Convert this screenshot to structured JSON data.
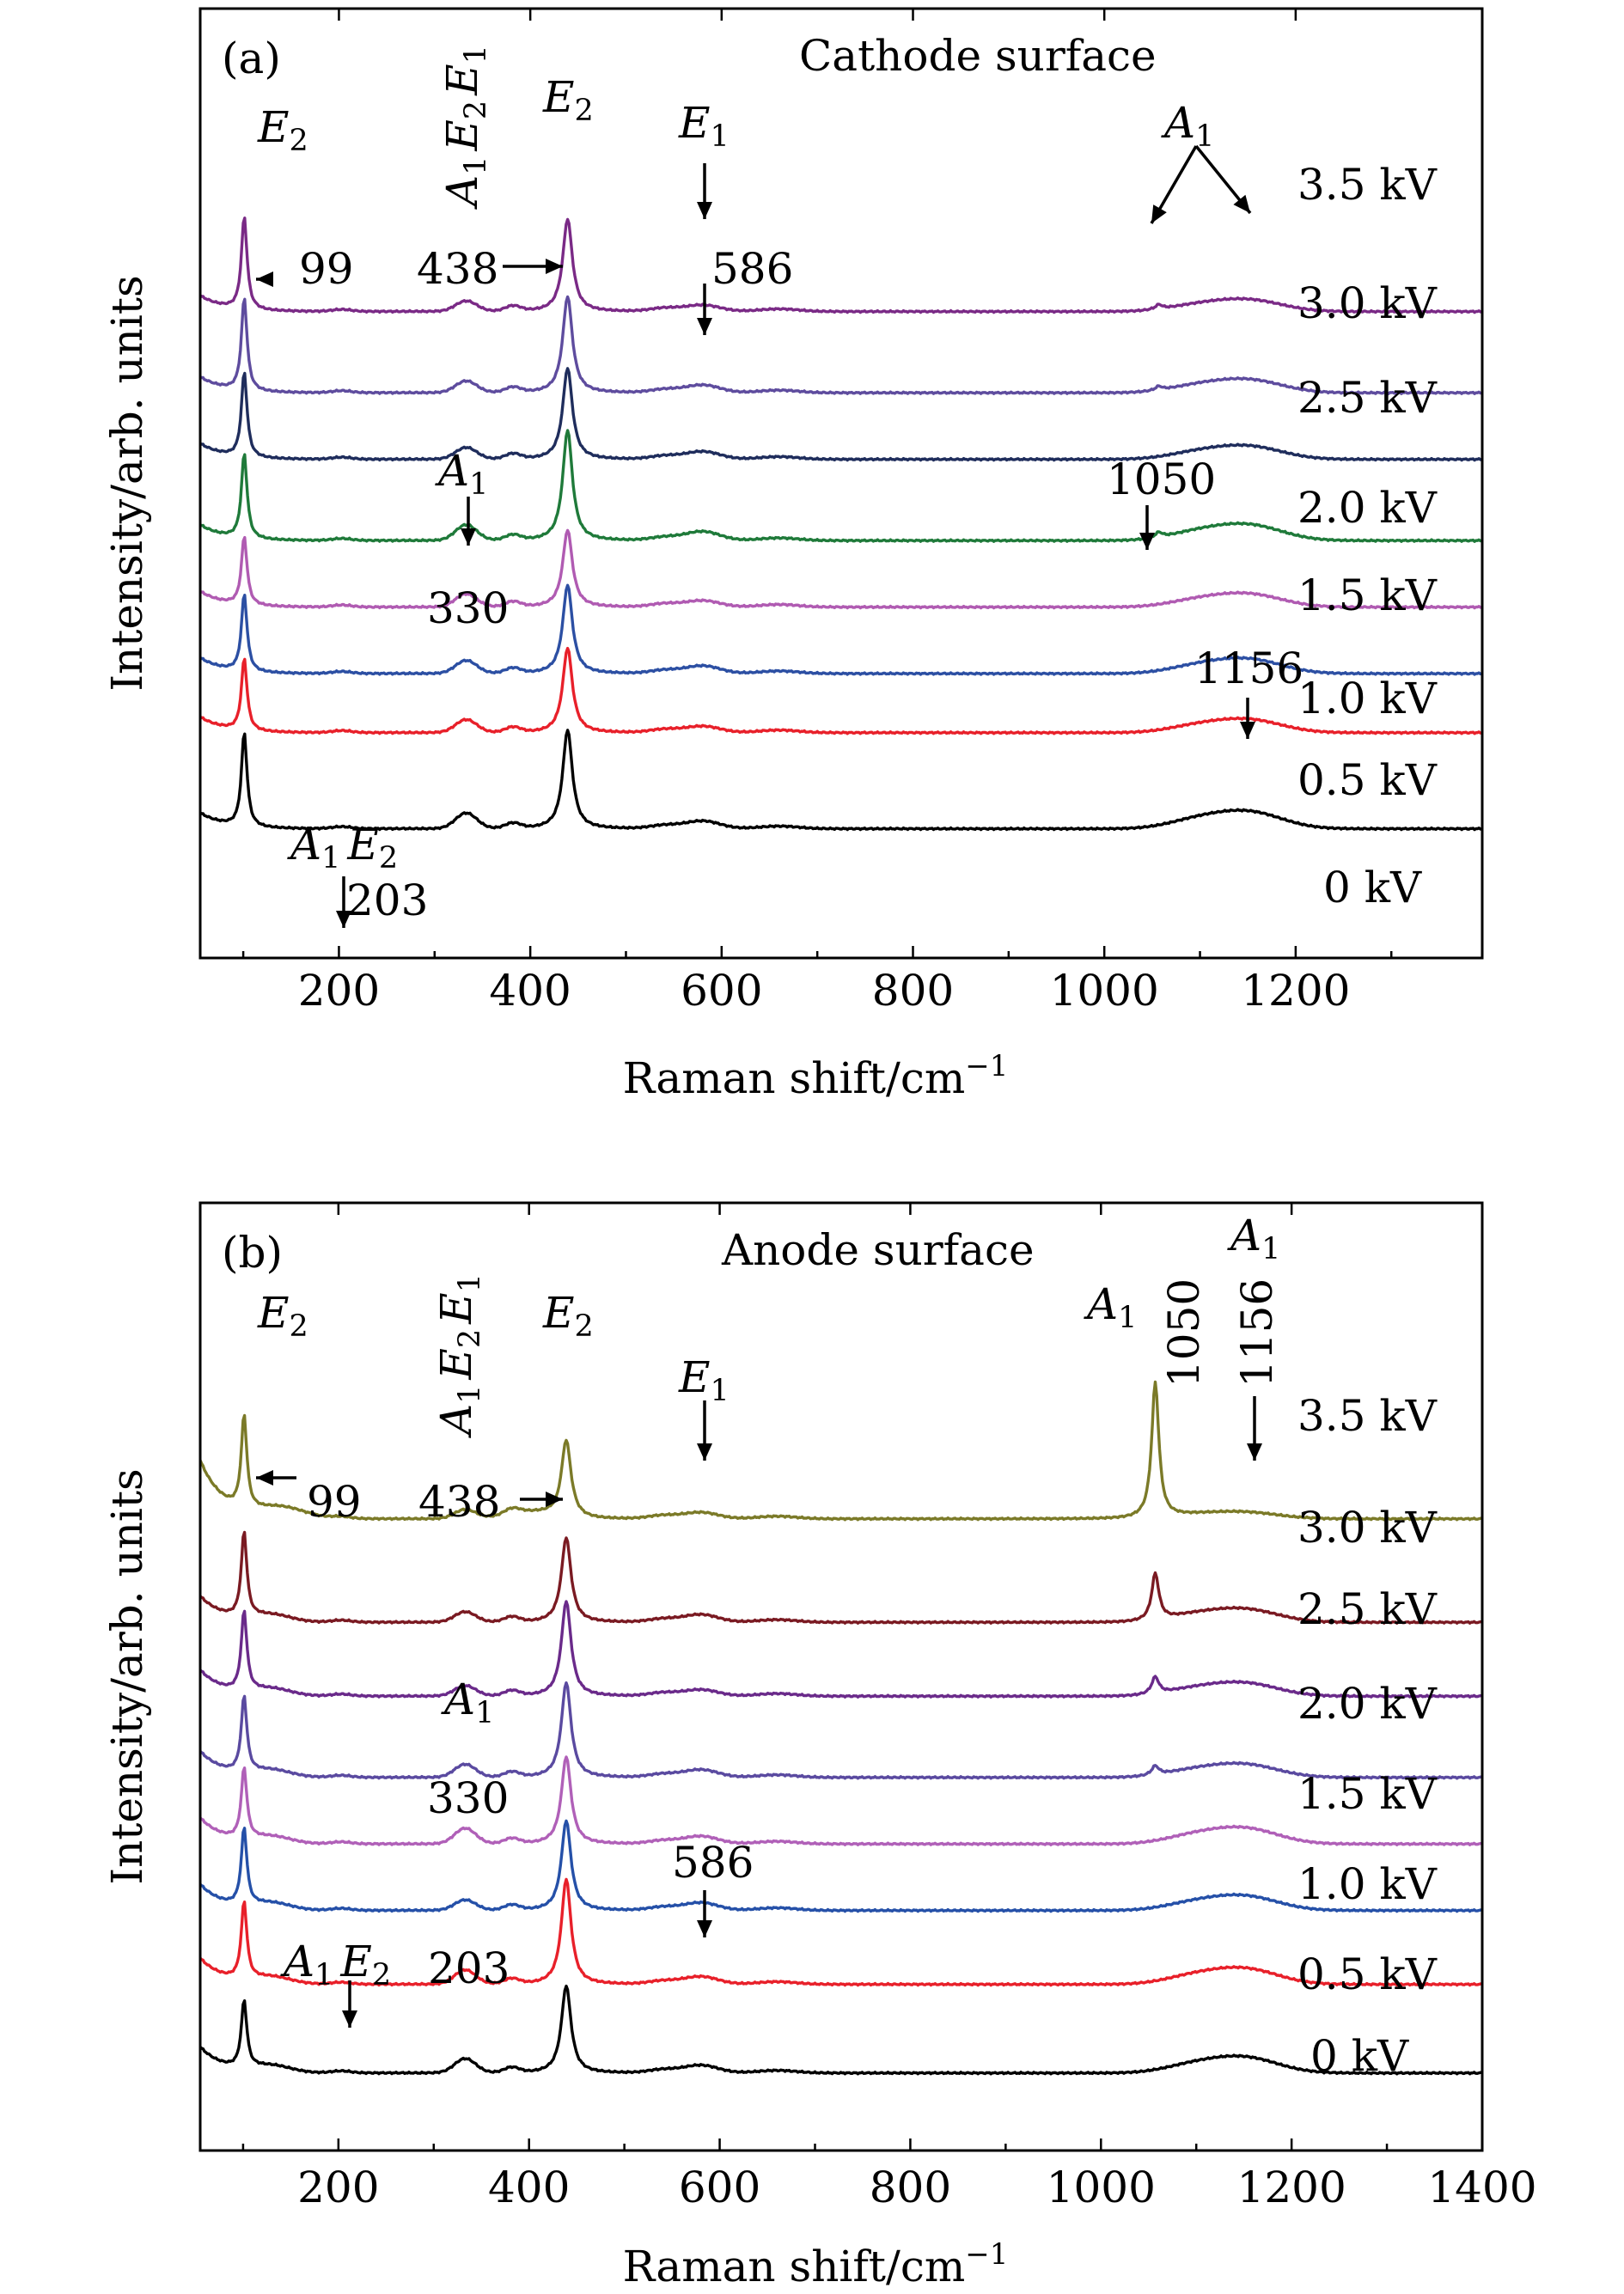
{
  "chart_data": [
    {
      "type": "line",
      "panel": "(a)",
      "title": "Cathode surface",
      "xlabel": "Raman shift/cm",
      "xlabel_sup": "−1",
      "ylabel": "Intensity/arb. units",
      "xlim": [
        55,
        1395
      ],
      "xticks": [
        200,
        400,
        600,
        800,
        1000,
        1200
      ],
      "yticks_shown": false,
      "series": [
        {
          "name": "3.5 kV",
          "color": "#7a2a86",
          "baseline": 0.84,
          "peak99": 0.72,
          "peak438": 0.72,
          "peak330": 0.08,
          "peak586": 0.05,
          "peak1050": 0.035,
          "band1156": 0.09
        },
        {
          "name": "3.0 kV",
          "color": "#5e4c9e",
          "baseline": 0.73,
          "peak99": 0.72,
          "peak438": 0.75,
          "peak330": 0.09,
          "peak586": 0.06,
          "peak1050": 0.03,
          "band1156": 0.1
        },
        {
          "name": "2.5 kV",
          "color": "#1f2d5c",
          "baseline": 0.64,
          "peak99": 0.66,
          "peak438": 0.71,
          "peak330": 0.09,
          "peak586": 0.06,
          "peak1050": 0.0,
          "band1156": 0.1
        },
        {
          "name": "2.0 kV",
          "color": "#1f7a3a",
          "baseline": 0.53,
          "peak99": 0.66,
          "peak438": 0.86,
          "peak330": 0.12,
          "peak586": 0.07,
          "peak1050": 0.04,
          "band1156": 0.12
        },
        {
          "name": "1.5 kV",
          "color": "#b05bb2",
          "baseline": 0.44,
          "peak99": 0.53,
          "peak438": 0.6,
          "peak330": 0.1,
          "peak586": 0.05,
          "peak1050": 0.0,
          "band1156": 0.1
        },
        {
          "name": "1.0 kV",
          "color": "#2c4fa3",
          "baseline": 0.35,
          "peak99": 0.6,
          "peak438": 0.69,
          "peak330": 0.1,
          "peak586": 0.06,
          "peak1050": 0.0,
          "band1156": 0.11
        },
        {
          "name": "0.5 kV",
          "color": "#e8202a",
          "baseline": 0.27,
          "peak99": 0.56,
          "peak438": 0.66,
          "peak330": 0.1,
          "peak586": 0.05,
          "peak1050": 0.0,
          "band1156": 0.1
        },
        {
          "name": "0 kV",
          "color": "#000000",
          "baseline": 0.14,
          "peak99": 0.73,
          "peak438": 0.77,
          "peak330": 0.12,
          "peak586": 0.06,
          "peak1050": 0.0,
          "band1156": 0.13
        }
      ],
      "annotations": [
        {
          "text": "(a)"
        },
        {
          "text": "E",
          "sub": "2",
          "note": "peak at 99"
        },
        {
          "text": "A",
          "sub": "1",
          "text2": "E",
          "sub2": "2",
          "text3": "E",
          "sub3": "1",
          "vertical": true
        },
        {
          "text": "E",
          "sub": "2",
          "note": "peak at 438"
        },
        {
          "text": "E",
          "sub": "1",
          "note": "peak at 586"
        },
        {
          "text": "A",
          "sub": "1",
          "note": "broad band"
        },
        {
          "text": "99"
        },
        {
          "text": "438"
        },
        {
          "text": "586"
        },
        {
          "text": "A",
          "sub": "1",
          "note": "330 arrow"
        },
        {
          "text": "1050"
        },
        {
          "text": "330"
        },
        {
          "text": "1156"
        },
        {
          "text": "A",
          "sub": "1",
          "text2": "E",
          "sub2": "2"
        },
        {
          "text": "203"
        }
      ]
    },
    {
      "type": "line",
      "panel": "(b)",
      "title": "Anode surface",
      "xlabel": "Raman shift/cm",
      "xlabel_sup": "−1",
      "ylabel": "Intensity/arb. units",
      "xlim": [
        55,
        1400
      ],
      "xticks": [
        200,
        400,
        600,
        800,
        1000,
        1200,
        1400
      ],
      "yticks_shown": false,
      "series": [
        {
          "name": "3.5 kV",
          "color": "#7b7a28",
          "baseline": 0.82,
          "peak99": 0.72,
          "peak438": 0.6,
          "peak330": 0.07,
          "peak586": 0.05,
          "peak1050": 1.05,
          "band1156": 0.05
        },
        {
          "name": "3.0 kV",
          "color": "#7a1a22",
          "baseline": 0.68,
          "peak99": 0.66,
          "peak438": 0.66,
          "peak330": 0.08,
          "peak586": 0.06,
          "peak1050": 0.36,
          "band1156": 0.1
        },
        {
          "name": "2.5 kV",
          "color": "#6a2a8a",
          "baseline": 0.58,
          "peak99": 0.62,
          "peak438": 0.74,
          "peak330": 0.08,
          "peak586": 0.05,
          "peak1050": 0.13,
          "band1156": 0.1
        },
        {
          "name": "2.0 kV",
          "color": "#5a4aa0",
          "baseline": 0.47,
          "peak99": 0.59,
          "peak438": 0.74,
          "peak330": 0.1,
          "peak586": 0.06,
          "peak1050": 0.07,
          "band1156": 0.1
        },
        {
          "name": "1.5 kV",
          "color": "#b060b8",
          "baseline": 0.38,
          "peak99": 0.55,
          "peak438": 0.68,
          "peak330": 0.12,
          "peak586": 0.06,
          "peak1050": 0.0,
          "band1156": 0.12
        },
        {
          "name": "1.0 kV",
          "color": "#2550a8",
          "baseline": 0.29,
          "peak99": 0.6,
          "peak438": 0.7,
          "peak330": 0.08,
          "peak586": 0.06,
          "peak1050": 0.0,
          "band1156": 0.11
        },
        {
          "name": "0.5 kV",
          "color": "#e8202a",
          "baseline": 0.19,
          "peak99": 0.6,
          "peak438": 0.82,
          "peak330": 0.11,
          "peak586": 0.06,
          "peak1050": 0.0,
          "band1156": 0.12
        },
        {
          "name": "0 kV",
          "color": "#000000",
          "baseline": 0.07,
          "peak99": 0.52,
          "peak438": 0.68,
          "peak330": 0.11,
          "peak586": 0.06,
          "peak1050": 0.0,
          "band1156": 0.12
        }
      ],
      "annotations": [
        {
          "text": "(b)"
        },
        {
          "text": "E",
          "sub": "2",
          "note": "peak at 99"
        },
        {
          "text": "A",
          "sub": "1",
          "text2": "E",
          "sub2": "2",
          "text3": "E",
          "sub3": "1",
          "vertical": true
        },
        {
          "text": "E",
          "sub": "2",
          "note": "peak at 438"
        },
        {
          "text": "E",
          "sub": "1",
          "note": "peak at 586"
        },
        {
          "text": "A",
          "sub": "1",
          "note": "peak at 1050"
        },
        {
          "text": "1050",
          "vertical": true
        },
        {
          "text": "1156",
          "vertical": true
        },
        {
          "text": "A",
          "sub": "1",
          "note": "top right"
        },
        {
          "text": "99"
        },
        {
          "text": "438"
        },
        {
          "text": "A",
          "sub": "1",
          "note": "330"
        },
        {
          "text": "330"
        },
        {
          "text": "586"
        },
        {
          "text": "A",
          "sub": "1",
          "text2": "E",
          "sub2": "2"
        },
        {
          "text": "203"
        }
      ]
    }
  ]
}
